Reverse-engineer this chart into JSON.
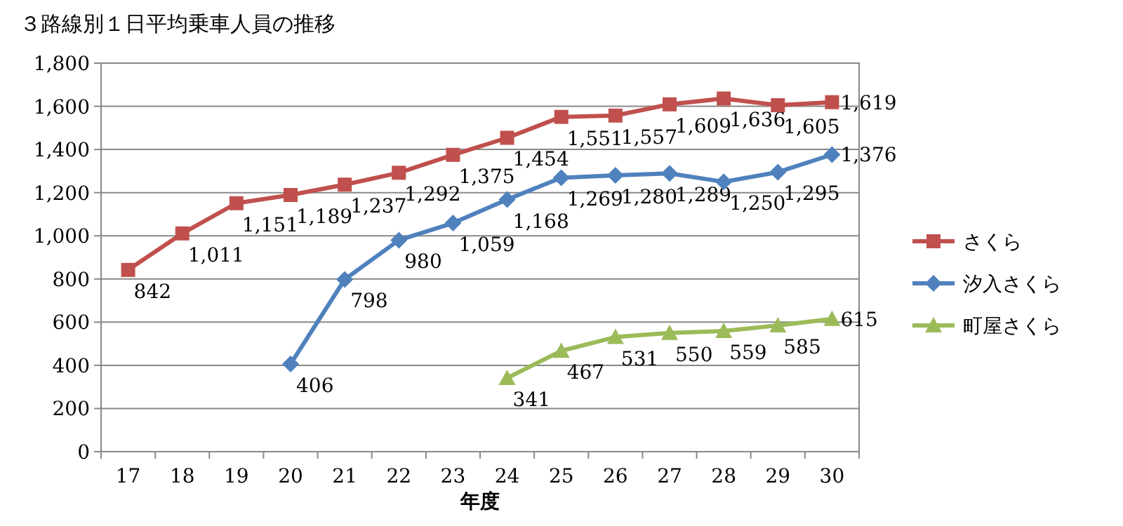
{
  "chart_data": {
    "type": "line",
    "title": "３路線別１日平均乗車人員の推移",
    "xlabel": "年度",
    "categories": [
      "17",
      "18",
      "19",
      "20",
      "21",
      "22",
      "23",
      "24",
      "25",
      "26",
      "27",
      "28",
      "29",
      "30"
    ],
    "series": [
      {
        "name": "さくら",
        "color": "#c0504d",
        "marker": "square",
        "values": [
          842,
          1011,
          1151,
          1189,
          1237,
          1292,
          1375,
          1454,
          1551,
          1557,
          1609,
          1636,
          1605,
          1619
        ],
        "value_labels": [
          "842",
          "1,011",
          "1,151",
          "1,189",
          "1,237",
          "1,292",
          "1,375",
          "1,454",
          "1,551",
          "1,557",
          "1,609",
          "1,636",
          "1,605",
          "1,619"
        ]
      },
      {
        "name": "汐入さくら",
        "color": "#4f81bd",
        "marker": "diamond",
        "values": [
          null,
          null,
          null,
          406,
          798,
          980,
          1059,
          1168,
          1269,
          1280,
          1289,
          1250,
          1295,
          1376
        ],
        "value_labels": [
          null,
          null,
          null,
          "406",
          "798",
          "980",
          "1,059",
          "1,168",
          "1,269",
          "1,280",
          "1,289",
          "1,250",
          "1,295",
          "1,376"
        ]
      },
      {
        "name": "町屋さくら",
        "color": "#9bbb59",
        "marker": "triangle",
        "values": [
          null,
          null,
          null,
          null,
          null,
          null,
          null,
          341,
          467,
          531,
          550,
          559,
          585,
          615
        ],
        "value_labels": [
          null,
          null,
          null,
          null,
          null,
          null,
          null,
          "341",
          "467",
          "531",
          "550",
          "559",
          "585",
          "615"
        ]
      }
    ],
    "ylim": [
      0,
      1800
    ],
    "yticks": [
      0,
      200,
      400,
      600,
      800,
      {
        "value": 1000,
        "label": "1,000"
      },
      {
        "value": 1200,
        "label": "1,200"
      },
      {
        "value": 1400,
        "label": "1,400"
      },
      {
        "value": 1600,
        "label": "1,600"
      },
      {
        "value": 1800,
        "label": "1,800"
      }
    ],
    "grid": "y",
    "legend": "right",
    "line_style": "solid"
  }
}
